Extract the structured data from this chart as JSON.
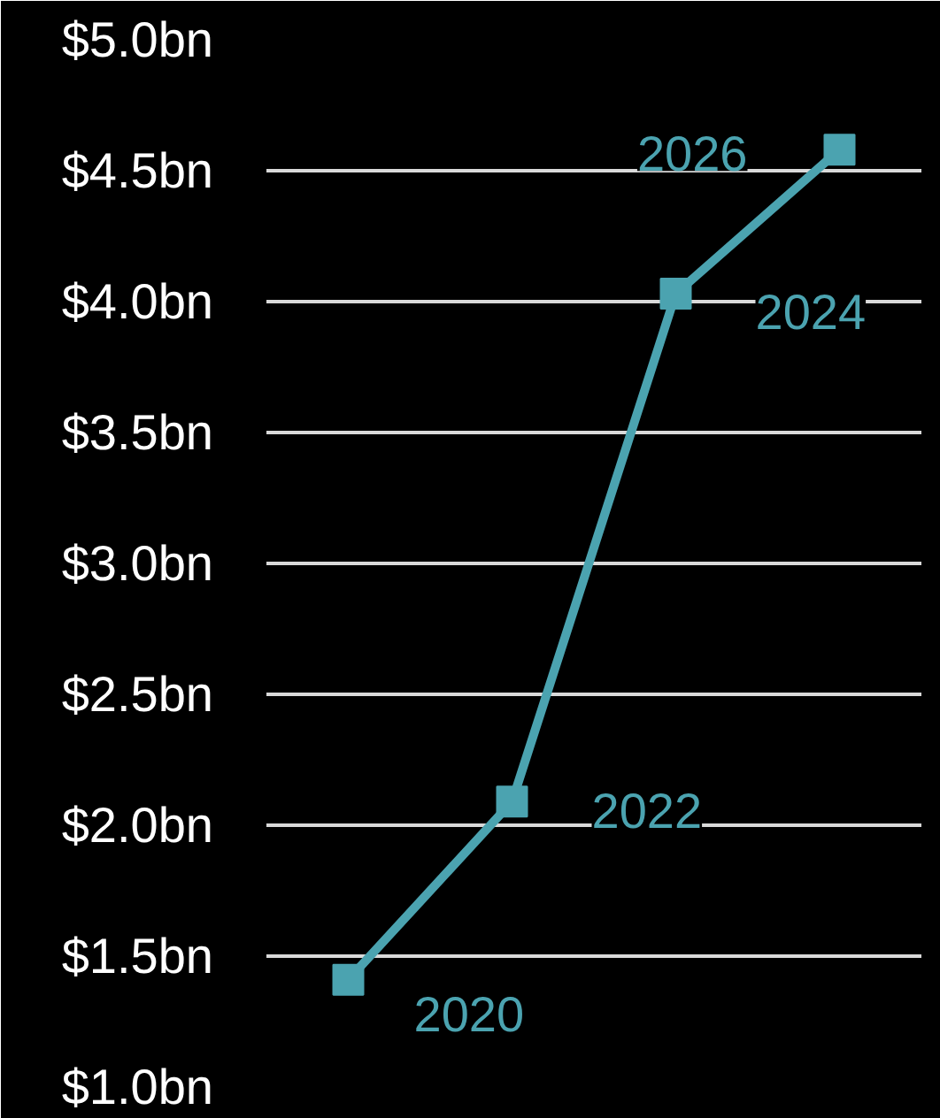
{
  "chart_data": {
    "type": "line",
    "categories": [
      null,
      null,
      null,
      null
    ],
    "series": [
      {
        "color": "#4ba3b0",
        "values": [
          1.41,
          2.09,
          4.03,
          4.58
        ]
      }
    ],
    "ylim": [
      1,
      5
    ],
    "yticks": [
      {
        "value": 1,
        "label": "$1.0bn"
      },
      {
        "value": 1.5,
        "label": "$1.5bn"
      },
      {
        "value": 2,
        "label": "$2.0bn"
      },
      {
        "value": 2.5,
        "label": "$2.5bn"
      },
      {
        "value": 3,
        "label": "$3.0bn"
      },
      {
        "value": 3.5,
        "label": "$3.5bn"
      },
      {
        "value": 4,
        "label": "$4.0bn"
      },
      {
        "value": 4.5,
        "label": "$4.5bn"
      },
      {
        "value": 5,
        "label": "$5.0bn"
      }
    ],
    "grid": "y",
    "tick_labels": "y",
    "marker": "square",
    "line_style": "solid",
    "annotations": [
      "2020",
      "2022",
      "2024",
      "2026"
    ]
  }
}
